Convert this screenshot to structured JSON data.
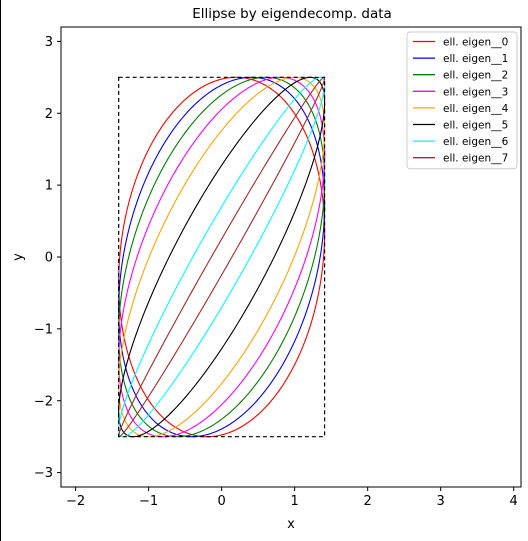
{
  "chart_data": {
    "type": "line",
    "title": "Ellipse by eigendecomp. data",
    "xlabel": "x",
    "ylabel": "y",
    "xlim": [
      -2.2,
      4.1
    ],
    "ylim": [
      -3.2,
      3.2
    ],
    "xticks": [
      -2,
      -1,
      0,
      1,
      2,
      3,
      4
    ],
    "yticks": [
      -3,
      -2,
      -1,
      0,
      1,
      2,
      3
    ],
    "xtick_labels": [
      "−2",
      "−1",
      "0",
      "1",
      "2",
      "3",
      "4"
    ],
    "ytick_labels": [
      "−3",
      "−2",
      "−1",
      "0",
      "1",
      "2",
      "3"
    ],
    "grid": false,
    "legend_position": "top-right",
    "bounding_box": {
      "x": [
        -1.41,
        1.41
      ],
      "y": [
        -2.5,
        2.5
      ],
      "style": "dashed",
      "color": "#000000"
    },
    "series": [
      {
        "name": "ell. eigen__0",
        "color": "#ff0000",
        "center": [
          0,
          0
        ],
        "x_half_width": 1.41,
        "y_half_height": 2.5,
        "correlation": 0.14
      },
      {
        "name": "ell. eigen__1",
        "color": "#0000ff",
        "center": [
          0,
          0
        ],
        "x_half_width": 1.41,
        "y_half_height": 2.5,
        "correlation": 0.29
      },
      {
        "name": "ell. eigen__2",
        "color": "#008000",
        "center": [
          0,
          0
        ],
        "x_half_width": 1.41,
        "y_half_height": 2.5,
        "correlation": 0.43
      },
      {
        "name": "ell. eigen__3",
        "color": "#ff00ff",
        "center": [
          0,
          0
        ],
        "x_half_width": 1.41,
        "y_half_height": 2.5,
        "correlation": 0.57
      },
      {
        "name": "ell. eigen__4",
        "color": "#ffa500",
        "center": [
          0,
          0
        ],
        "x_half_width": 1.41,
        "y_half_height": 2.5,
        "correlation": 0.71
      },
      {
        "name": "ell. eigen__5",
        "color": "#000000",
        "center": [
          0,
          0
        ],
        "x_half_width": 1.41,
        "y_half_height": 2.5,
        "correlation": 0.86
      },
      {
        "name": "ell. eigen__6",
        "color": "#00ffff",
        "center": [
          0,
          0
        ],
        "x_half_width": 1.41,
        "y_half_height": 2.5,
        "correlation": 0.96
      },
      {
        "name": "ell. eigen__7",
        "color": "#a52a2a",
        "center": [
          0,
          0
        ],
        "x_half_width": 1.41,
        "y_half_height": 2.5,
        "correlation": 0.995
      }
    ]
  }
}
